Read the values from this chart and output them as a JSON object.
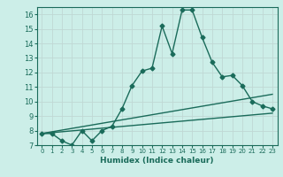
{
  "xlabel": "Humidex (Indice chaleur)",
  "bg_color": "#cceee8",
  "grid_color": "#c0d8d4",
  "line_color": "#1a6b5a",
  "xlim": [
    -0.5,
    23.5
  ],
  "ylim": [
    7,
    16.5
  ],
  "xticks": [
    0,
    1,
    2,
    3,
    4,
    5,
    6,
    7,
    8,
    9,
    10,
    11,
    12,
    13,
    14,
    15,
    16,
    17,
    18,
    19,
    20,
    21,
    22,
    23
  ],
  "yticks": [
    7,
    8,
    9,
    10,
    11,
    12,
    13,
    14,
    15,
    16
  ],
  "curve1_x": [
    0,
    1,
    2,
    3,
    4,
    5,
    6,
    7,
    8,
    9,
    10,
    11,
    12,
    13,
    14,
    15,
    16,
    17,
    18,
    19,
    20,
    21,
    22,
    23
  ],
  "curve1_y": [
    7.8,
    7.8,
    7.3,
    7.0,
    8.0,
    7.3,
    8.0,
    8.3,
    9.5,
    11.1,
    12.1,
    12.3,
    15.2,
    13.3,
    16.3,
    16.3,
    14.4,
    12.7,
    11.7,
    11.8,
    11.1,
    10.0,
    9.7,
    9.5
  ],
  "curve2_x": [
    0,
    23
  ],
  "curve2_y": [
    7.8,
    10.5
  ],
  "curve3_x": [
    0,
    23
  ],
  "curve3_y": [
    7.8,
    9.2
  ],
  "marker": "D",
  "markersize": 2.5,
  "linewidth": 1.0
}
